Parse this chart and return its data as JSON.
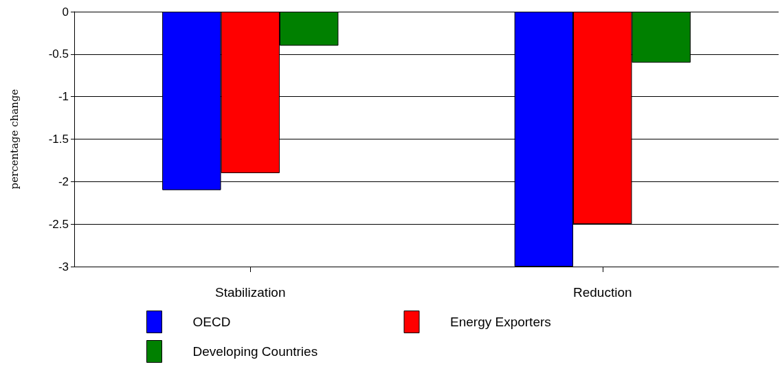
{
  "chart_data": {
    "type": "bar",
    "ylabel": "percentage change",
    "categories": [
      "Stabilization",
      "Reduction"
    ],
    "series": [
      {
        "name": "OECD",
        "color": "#0000ff",
        "values": [
          -2.1,
          -3.0
        ]
      },
      {
        "name": "Energy Exporters",
        "color": "#ff0000",
        "values": [
          -1.9,
          -2.5
        ]
      },
      {
        "name": "Developing Countries",
        "color": "#008000",
        "values": [
          -0.4,
          -0.6
        ]
      }
    ],
    "ylim": [
      -3,
      0
    ],
    "yticks": [
      -3,
      -2.5,
      -2,
      -1.5,
      -1,
      -0.5,
      0
    ],
    "grid": "y",
    "legend": "bottom"
  }
}
